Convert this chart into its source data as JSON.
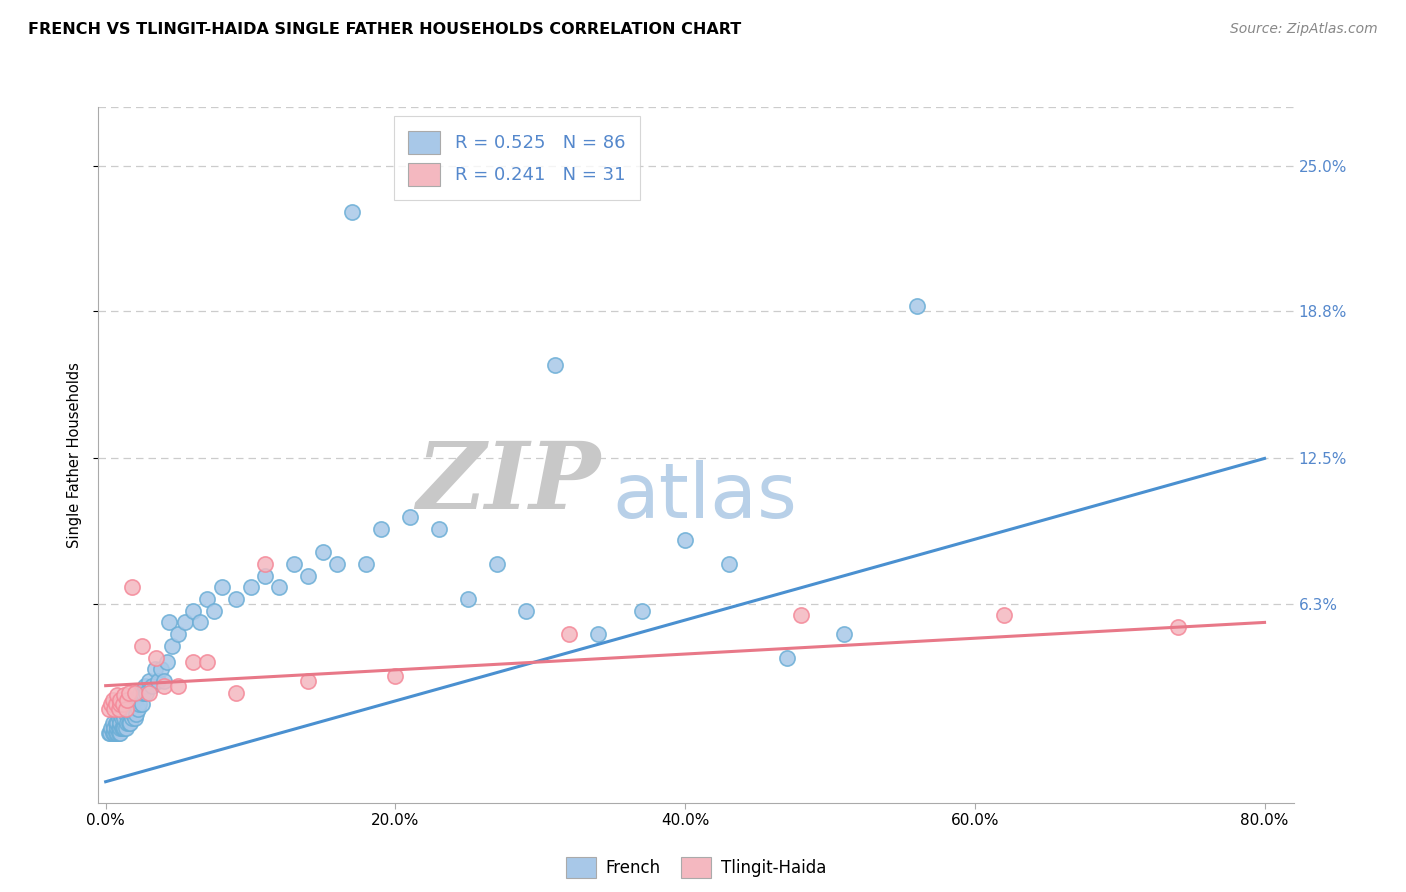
{
  "title": "FRENCH VS TLINGIT-HAIDA SINGLE FATHER HOUSEHOLDS CORRELATION CHART",
  "source": "Source: ZipAtlas.com",
  "ylabel": "Single Father Households",
  "x_tick_labels": [
    "0.0%",
    "20.0%",
    "40.0%",
    "60.0%",
    "80.0%"
  ],
  "x_tick_positions": [
    0.0,
    0.2,
    0.4,
    0.6,
    0.8
  ],
  "y_tick_labels": [
    "6.3%",
    "12.5%",
    "18.8%",
    "25.0%"
  ],
  "y_tick_positions": [
    0.063,
    0.125,
    0.188,
    0.25
  ],
  "xlim": [
    -0.005,
    0.82
  ],
  "ylim": [
    -0.022,
    0.275
  ],
  "french_R": "0.525",
  "french_N": "86",
  "tlingit_R": "0.241",
  "tlingit_N": "31",
  "french_color": "#a8c8e8",
  "tlingit_color": "#f4b8c0",
  "french_edge_color": "#6baed6",
  "tlingit_edge_color": "#f48898",
  "french_line_color": "#4a90d0",
  "tlingit_line_color": "#e87888",
  "legend_patch_french": "#a8c8e8",
  "legend_patch_tlingit": "#f4b8c0",
  "tick_label_color": "#5588cc",
  "watermark_zip_color": "#c8c8c8",
  "watermark_atlas_color": "#b8d0e8",
  "french_line_x0": 0.0,
  "french_line_y0": -0.013,
  "french_line_x1": 0.8,
  "french_line_y1": 0.125,
  "tlingit_line_x0": 0.0,
  "tlingit_line_y0": 0.028,
  "tlingit_line_x1": 0.8,
  "tlingit_line_y1": 0.055,
  "french_scatter_x": [
    0.002,
    0.003,
    0.004,
    0.005,
    0.005,
    0.006,
    0.006,
    0.007,
    0.007,
    0.008,
    0.008,
    0.008,
    0.009,
    0.009,
    0.009,
    0.01,
    0.01,
    0.01,
    0.01,
    0.011,
    0.011,
    0.012,
    0.012,
    0.013,
    0.013,
    0.014,
    0.014,
    0.015,
    0.015,
    0.016,
    0.016,
    0.017,
    0.017,
    0.018,
    0.018,
    0.019,
    0.02,
    0.02,
    0.021,
    0.022,
    0.023,
    0.024,
    0.025,
    0.026,
    0.027,
    0.028,
    0.03,
    0.032,
    0.034,
    0.036,
    0.038,
    0.04,
    0.042,
    0.044,
    0.046,
    0.05,
    0.055,
    0.06,
    0.065,
    0.07,
    0.075,
    0.08,
    0.09,
    0.1,
    0.11,
    0.12,
    0.13,
    0.14,
    0.15,
    0.16,
    0.17,
    0.18,
    0.19,
    0.21,
    0.23,
    0.25,
    0.27,
    0.29,
    0.31,
    0.34,
    0.37,
    0.4,
    0.43,
    0.47,
    0.51,
    0.56
  ],
  "french_scatter_y": [
    0.008,
    0.008,
    0.01,
    0.008,
    0.012,
    0.008,
    0.01,
    0.008,
    0.012,
    0.008,
    0.01,
    0.012,
    0.008,
    0.01,
    0.014,
    0.008,
    0.01,
    0.012,
    0.016,
    0.01,
    0.014,
    0.01,
    0.016,
    0.01,
    0.014,
    0.01,
    0.016,
    0.012,
    0.018,
    0.012,
    0.018,
    0.012,
    0.02,
    0.014,
    0.022,
    0.016,
    0.014,
    0.022,
    0.016,
    0.018,
    0.02,
    0.025,
    0.02,
    0.025,
    0.028,
    0.025,
    0.03,
    0.028,
    0.035,
    0.03,
    0.035,
    0.03,
    0.038,
    0.055,
    0.045,
    0.05,
    0.055,
    0.06,
    0.055,
    0.065,
    0.06,
    0.07,
    0.065,
    0.07,
    0.075,
    0.07,
    0.08,
    0.075,
    0.085,
    0.08,
    0.23,
    0.08,
    0.095,
    0.1,
    0.095,
    0.065,
    0.08,
    0.06,
    0.165,
    0.05,
    0.06,
    0.09,
    0.08,
    0.04,
    0.05,
    0.19
  ],
  "tlingit_scatter_x": [
    0.002,
    0.004,
    0.005,
    0.006,
    0.007,
    0.008,
    0.009,
    0.01,
    0.01,
    0.012,
    0.013,
    0.014,
    0.015,
    0.016,
    0.018,
    0.02,
    0.025,
    0.03,
    0.035,
    0.04,
    0.05,
    0.06,
    0.07,
    0.09,
    0.11,
    0.14,
    0.2,
    0.32,
    0.48,
    0.62,
    0.74
  ],
  "tlingit_scatter_y": [
    0.018,
    0.02,
    0.022,
    0.018,
    0.02,
    0.024,
    0.018,
    0.02,
    0.022,
    0.02,
    0.024,
    0.018,
    0.022,
    0.025,
    0.07,
    0.025,
    0.045,
    0.025,
    0.04,
    0.028,
    0.028,
    0.038,
    0.038,
    0.025,
    0.08,
    0.03,
    0.032,
    0.05,
    0.058,
    0.058,
    0.053
  ]
}
